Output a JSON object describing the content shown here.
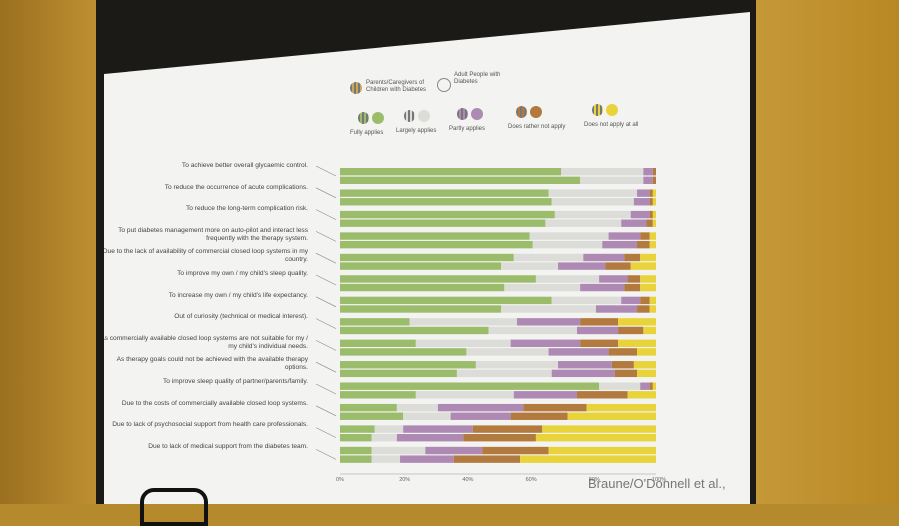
{
  "credit": "Braune/O'Donnell et al.,",
  "legend": {
    "parents": "Parents/Caregivers of Children with Diabetes",
    "adults": "Adult People with Diabetes",
    "levels": [
      "Fully applies",
      "Largely applies",
      "Partly applies",
      "Does rather not apply",
      "Does not apply at all"
    ]
  },
  "colors": {
    "fully": "#9bbd6b",
    "largely": "#dcdcd8",
    "partly": "#ad89b4",
    "rather_not": "#b27a3e",
    "not_at_all": "#e8d33a"
  },
  "chart_data": {
    "type": "bar",
    "orientation": "horizontal",
    "stacked": true,
    "xlim": [
      0,
      100
    ],
    "ticks": [
      "0%",
      "20%",
      "40%",
      "60%",
      "80%",
      "100%"
    ],
    "categories": [
      "To achieve better overall glycaemic control.",
      "To reduce the occurrence of acute complications.",
      "To reduce the long-term complication risk.",
      "To put diabetes management more on auto-pilot and interact less frequently with the therapy system.",
      "Due to the lack of availability of commercial closed loop systems in my country.",
      "To improve my own / my child's sleep quality.",
      "To increase my own / my child's life expectancy.",
      "Out of curiosity (technical or medical interest).",
      "As commercially available closed loop systems are not suitable for my / my child's individual needs.",
      "As therapy goals could not be achieved with the available therapy options.",
      "To improve sleep quality of partner/parents/family.",
      "Due to the costs of commercially available closed loop systems.",
      "Due to lack of psychosocial support from health care professionals.",
      "Due to lack of medical support from the diabetes team."
    ],
    "groups": [
      "Parents/Caregivers of Children with Diabetes",
      "Adult People with Diabetes"
    ],
    "series_order": [
      "Fully applies",
      "Largely applies",
      "Partly applies",
      "Does rather not apply",
      "Does not apply at all"
    ],
    "values": [
      [
        [
          70,
          26,
          3,
          1,
          0
        ],
        [
          76,
          20,
          3,
          1,
          0
        ]
      ],
      [
        [
          66,
          28,
          4,
          1,
          1
        ],
        [
          67,
          26,
          5,
          1,
          1
        ]
      ],
      [
        [
          68,
          24,
          6,
          1,
          1
        ],
        [
          65,
          24,
          8,
          2,
          1
        ]
      ],
      [
        [
          60,
          25,
          10,
          3,
          2
        ],
        [
          61,
          22,
          11,
          4,
          2
        ]
      ],
      [
        [
          55,
          22,
          13,
          5,
          5
        ],
        [
          51,
          18,
          15,
          8,
          8
        ]
      ],
      [
        [
          62,
          20,
          9,
          4,
          5
        ],
        [
          52,
          24,
          14,
          5,
          5
        ]
      ],
      [
        [
          67,
          22,
          6,
          3,
          2
        ],
        [
          51,
          30,
          13,
          4,
          2
        ]
      ],
      [
        [
          22,
          34,
          20,
          12,
          12
        ],
        [
          47,
          28,
          13,
          8,
          4
        ]
      ],
      [
        [
          24,
          30,
          22,
          12,
          12
        ],
        [
          40,
          26,
          19,
          9,
          6
        ]
      ],
      [
        [
          43,
          26,
          17,
          7,
          7
        ],
        [
          37,
          30,
          20,
          7,
          6
        ]
      ],
      [
        [
          82,
          13,
          3,
          1,
          1
        ],
        [
          24,
          31,
          20,
          16,
          9
        ]
      ],
      [
        [
          18,
          13,
          27,
          20,
          22
        ],
        [
          20,
          15,
          19,
          18,
          28
        ]
      ],
      [
        [
          11,
          9,
          22,
          22,
          36
        ],
        [
          10,
          8,
          21,
          23,
          38
        ]
      ],
      [
        [
          10,
          17,
          18,
          21,
          34
        ],
        [
          10,
          9,
          17,
          21,
          43
        ]
      ]
    ]
  }
}
